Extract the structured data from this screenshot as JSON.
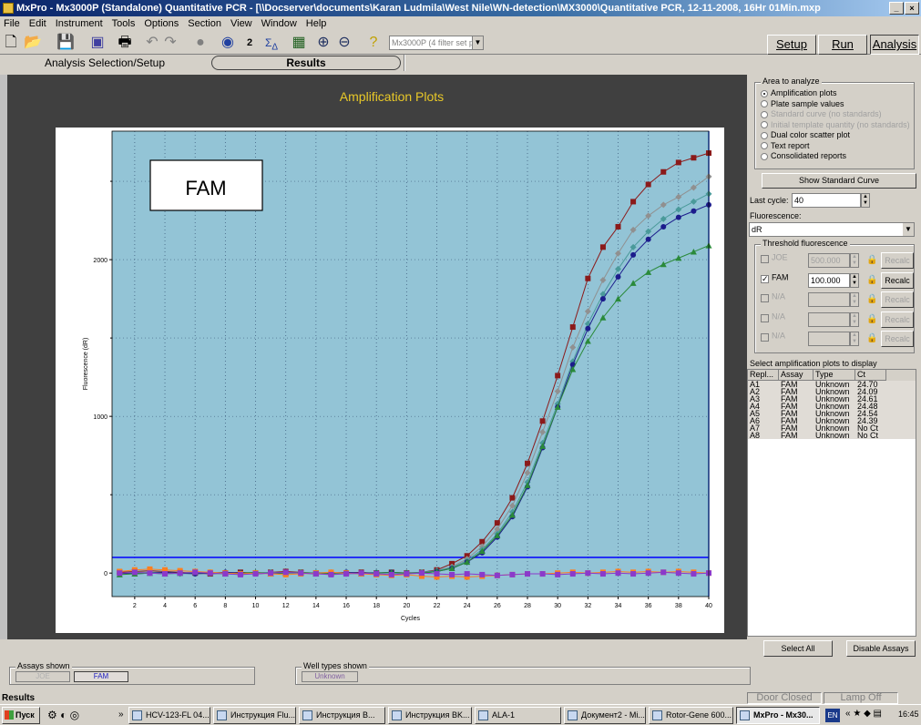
{
  "window": {
    "title": "MxPro - Mx3000P (Standalone) Quantitative PCR - [\\\\Docserver\\documents\\Karan Ludmila\\West Nile\\WN-detection\\MX3000\\Quantitative PCR, 12-11-2008, 16Hr 01Min.mxp",
    "controls": [
      "_",
      "×"
    ]
  },
  "menu": [
    "File",
    "Edit",
    "Instrument",
    "Tools",
    "Options",
    "Section",
    "View",
    "Window",
    "Help"
  ],
  "toolbar": {
    "instrument_select": "Mx3000P (4 filter set plate)"
  },
  "mode_buttons": {
    "setup": "Setup",
    "run": "Run",
    "analysis": "Analysis"
  },
  "tabs": {
    "selection": "Analysis Selection/Setup",
    "results": "Results"
  },
  "plot_title": "Amplification Plots",
  "right_panel": {
    "area_legend": "Area to analyze",
    "area_options": [
      {
        "label": "Amplification plots",
        "selected": true,
        "enabled": true
      },
      {
        "label": "Plate sample values",
        "selected": false,
        "enabled": true
      },
      {
        "label": "Standard curve (no standards)",
        "selected": false,
        "enabled": false
      },
      {
        "label": "Initial template quantity (no standards)",
        "selected": false,
        "enabled": false
      },
      {
        "label": "Dual color scatter plot",
        "selected": false,
        "enabled": true
      },
      {
        "label": "Text report",
        "selected": false,
        "enabled": true
      },
      {
        "label": "Consolidated reports",
        "selected": false,
        "enabled": true
      }
    ],
    "show_standard_curve": "Show Standard Curve",
    "last_cycle_label": "Last cycle:",
    "last_cycle_value": "40",
    "fluorescence_label": "Fluorescence:",
    "fluorescence_value": "dR",
    "threshold_legend": "Threshold fluorescence",
    "thresholds": [
      {
        "label": "JOE",
        "value": "500.000",
        "checked": false,
        "enabled": false
      },
      {
        "label": "FAM",
        "value": "100.000",
        "checked": true,
        "enabled": true
      },
      {
        "label": "N/A",
        "value": "",
        "checked": false,
        "enabled": false
      },
      {
        "label": "N/A",
        "value": "",
        "checked": false,
        "enabled": false
      },
      {
        "label": "N/A",
        "value": "",
        "checked": false,
        "enabled": false
      }
    ],
    "recalc_label": "Recalc",
    "select_plots_label": "Select amplification plots to display",
    "table_headers": [
      "Repl...",
      "Assay",
      "Type",
      "Ct"
    ],
    "table_rows": [
      [
        "A1",
        "FAM",
        "Unknown",
        "24.70"
      ],
      [
        "A2",
        "FAM",
        "Unknown",
        "24.09"
      ],
      [
        "A3",
        "FAM",
        "Unknown",
        "24.61"
      ],
      [
        "A4",
        "FAM",
        "Unknown",
        "24.48"
      ],
      [
        "A5",
        "FAM",
        "Unknown",
        "24.54"
      ],
      [
        "A6",
        "FAM",
        "Unknown",
        "24.39"
      ],
      [
        "A7",
        "FAM",
        "Unknown",
        "No Ct"
      ],
      [
        "A8",
        "FAM",
        "Unknown",
        "No Ct"
      ]
    ],
    "select_all": "Select All",
    "disable_assays": "Disable Assays"
  },
  "bottom": {
    "assays_legend": "Assays shown",
    "assays": [
      "JOE",
      "FAM"
    ],
    "well_types_legend": "Well types shown",
    "well_types": [
      "Unknown"
    ]
  },
  "status": {
    "left": "Results",
    "door": "Door Closed",
    "lamp": "Lamp Off"
  },
  "taskbar": {
    "start": "Пуск",
    "tasks": [
      "HCV-123-FL 04...",
      "Инструкция Flu...",
      "Инструкция B...",
      "Инструкция BK...",
      "ALA-1",
      "Документ2 - Mi...",
      "Rotor-Gene 600...",
      "MxPro - Mx30..."
    ],
    "lang": "EN",
    "clock": "16:45"
  },
  "chart_data": {
    "type": "line",
    "label_box": "FAM",
    "xlabel": "Cycles",
    "ylabel": "Fluorescence (dR)",
    "xlim": [
      0.5,
      40
    ],
    "ylim": [
      -150,
      2820
    ],
    "x_ticks": [
      2,
      4,
      6,
      8,
      10,
      12,
      14,
      16,
      18,
      20,
      22,
      24,
      26,
      28,
      30,
      32,
      34,
      36,
      38,
      40
    ],
    "y_ticks": [
      0,
      1000,
      2000
    ],
    "threshold": 100,
    "colors": {
      "background": "#93c4d6",
      "threshold": "#0000ff"
    },
    "x": [
      1,
      2,
      3,
      4,
      5,
      6,
      7,
      8,
      9,
      10,
      11,
      12,
      13,
      14,
      15,
      16,
      17,
      18,
      19,
      20,
      21,
      22,
      23,
      24,
      25,
      26,
      27,
      28,
      29,
      30,
      31,
      32,
      33,
      34,
      35,
      36,
      37,
      38,
      39,
      40
    ],
    "series": [
      {
        "color": "#8b1a1a",
        "marker": "square",
        "values": [
          5,
          10,
          15,
          10,
          5,
          0,
          -5,
          0,
          5,
          0,
          5,
          10,
          5,
          0,
          -5,
          0,
          5,
          0,
          5,
          0,
          5,
          20,
          60,
          110,
          200,
          320,
          480,
          700,
          970,
          1260,
          1570,
          1880,
          2080,
          2210,
          2370,
          2480,
          2560,
          2620,
          2650,
          2680
        ]
      },
      {
        "color": "#909090",
        "marker": "diamond",
        "values": [
          0,
          5,
          10,
          5,
          0,
          -5,
          0,
          5,
          0,
          5,
          0,
          0,
          5,
          0,
          5,
          0,
          0,
          5,
          0,
          5,
          0,
          15,
          40,
          90,
          170,
          280,
          430,
          640,
          900,
          1160,
          1440,
          1670,
          1870,
          2040,
          2190,
          2280,
          2350,
          2400,
          2460,
          2530
        ]
      },
      {
        "color": "#4a9a9a",
        "marker": "diamond",
        "values": [
          -5,
          0,
          5,
          0,
          -5,
          0,
          5,
          0,
          -5,
          0,
          5,
          0,
          0,
          5,
          0,
          -5,
          0,
          5,
          0,
          0,
          5,
          15,
          35,
          80,
          150,
          250,
          390,
          580,
          830,
          1080,
          1350,
          1590,
          1780,
          1940,
          2080,
          2180,
          2260,
          2320,
          2370,
          2420
        ]
      },
      {
        "color": "#1c1c8c",
        "marker": "circle",
        "values": [
          0,
          -5,
          0,
          5,
          0,
          -5,
          0,
          5,
          0,
          -5,
          0,
          5,
          0,
          -5,
          0,
          5,
          0,
          0,
          5,
          0,
          0,
          10,
          30,
          70,
          130,
          230,
          360,
          550,
          800,
          1060,
          1330,
          1560,
          1750,
          1890,
          2030,
          2130,
          2210,
          2270,
          2310,
          2350
        ]
      },
      {
        "color": "#2a8a3a",
        "marker": "triangle",
        "values": [
          -10,
          -5,
          0,
          -5,
          0,
          5,
          0,
          -5,
          0,
          5,
          -5,
          0,
          5,
          -5,
          0,
          0,
          -5,
          0,
          5,
          0,
          0,
          10,
          30,
          70,
          140,
          240,
          370,
          560,
          810,
          1060,
          1300,
          1480,
          1630,
          1750,
          1850,
          1920,
          1970,
          2010,
          2050,
          2090
        ]
      },
      {
        "color": "#ff7f20",
        "marker": "square",
        "values": [
          10,
          20,
          25,
          20,
          15,
          10,
          5,
          0,
          -5,
          0,
          -5,
          -10,
          -5,
          0,
          5,
          0,
          -5,
          -10,
          -15,
          -10,
          -20,
          -25,
          -20,
          -25,
          -20,
          -15,
          -10,
          -5,
          -5,
          0,
          5,
          0,
          5,
          10,
          5,
          10,
          5,
          10,
          5,
          0
        ]
      },
      {
        "color": "#8a3acb",
        "marker": "square",
        "values": [
          0,
          5,
          0,
          -5,
          0,
          5,
          0,
          -5,
          -10,
          -5,
          0,
          5,
          0,
          -5,
          -10,
          -5,
          0,
          -5,
          -10,
          -5,
          0,
          -5,
          -10,
          -5,
          -10,
          -15,
          -10,
          -5,
          -5,
          -10,
          -5,
          0,
          -5,
          0,
          -5,
          0,
          5,
          0,
          -5,
          0
        ]
      }
    ]
  }
}
